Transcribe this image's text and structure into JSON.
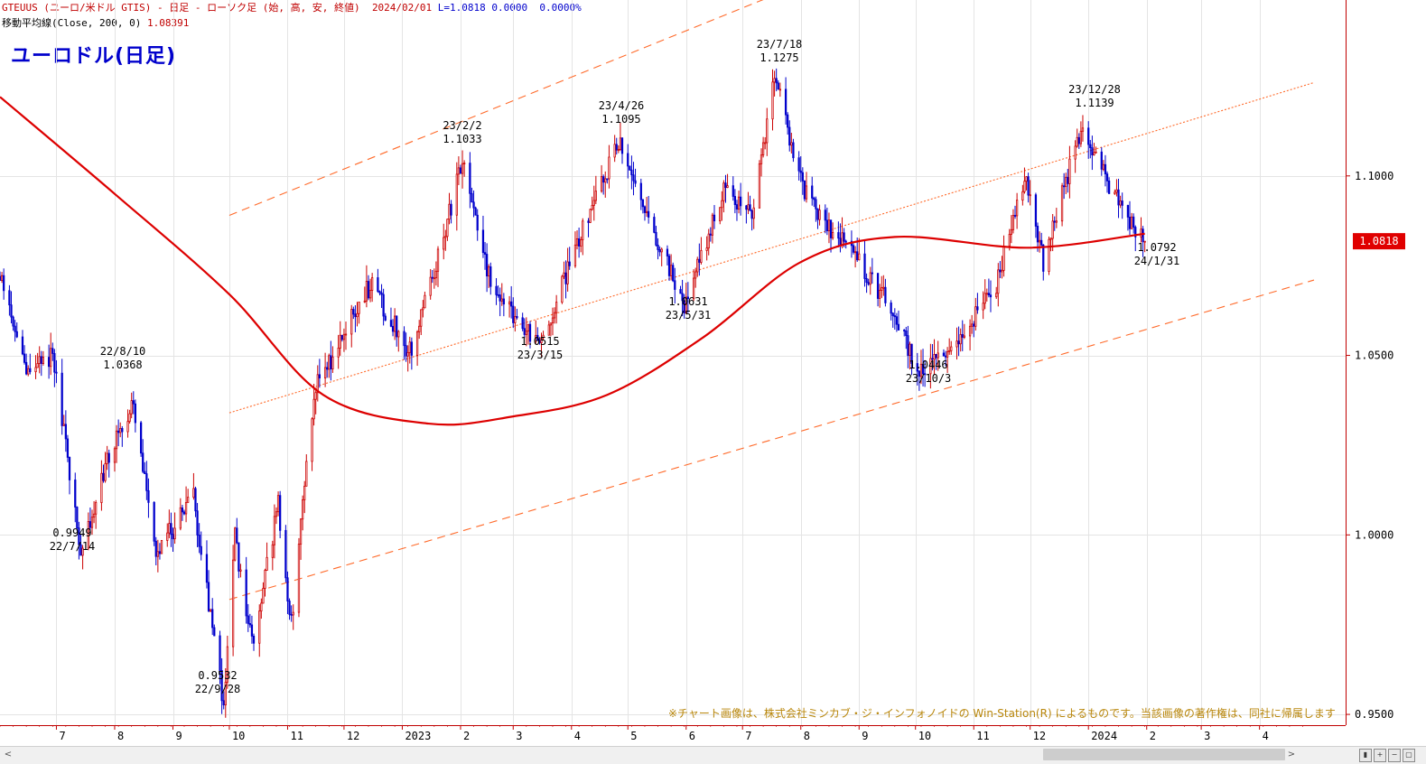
{
  "header": {
    "symbol_line": "GTEUUS (ユーロ/米ドル GTIS) - 日足 - ローソク足 (始, 高, 安, 終値)",
    "date": "2024/02/01",
    "last": "L=1.0818",
    "change": "0.0000",
    "change_pct": "0.0000%",
    "ma_label": "移動平均線(Close, 200, 0)",
    "ma_value": "1.08391"
  },
  "title": "ユーロドル(日足)",
  "copyright": "※チャート画像は、株式会社ミンカブ・ジ・インフォノイドの Win-Station(R) によるものです。当該画像の著作権は、同社に帰属します",
  "chart_data": {
    "type": "candlestick",
    "ylim": [
      0.947,
      1.149
    ],
    "y_ticks": [
      0.95,
      1.0,
      1.05,
      1.1
    ],
    "y_tick_labels": [
      "0.9500",
      "1.0000",
      "1.0500",
      "1.1000"
    ],
    "x_labels": [
      "7",
      "8",
      "9",
      "10",
      "11",
      "12",
      "2023",
      "2",
      "3",
      "4",
      "5",
      "6",
      "7",
      "8",
      "9",
      "10",
      "11",
      "12",
      "2024",
      "2",
      "3",
      "4"
    ],
    "last_price": "1.0818",
    "colors": {
      "up": "#cc0000",
      "down": "#0000cc",
      "ma": "#dd0000",
      "channel": "#ff6a2a",
      "badge": "#e00000"
    },
    "close_path": [
      {
        "date": "2022-06-01",
        "close": 1.072
      },
      {
        "date": "2022-06-15",
        "close": 1.045
      },
      {
        "date": "2022-06-29",
        "close": 1.05
      },
      {
        "date": "2022-07-14",
        "close": 0.9949
      },
      {
        "date": "2022-07-29",
        "close": 1.022
      },
      {
        "date": "2022-08-10",
        "close": 1.0368
      },
      {
        "date": "2022-08-23",
        "close": 0.995
      },
      {
        "date": "2022-09-12",
        "close": 1.01
      },
      {
        "date": "2022-09-28",
        "close": 0.9532
      },
      {
        "date": "2022-10-04",
        "close": 0.999
      },
      {
        "date": "2022-10-13",
        "close": 0.97
      },
      {
        "date": "2022-10-27",
        "close": 1.008
      },
      {
        "date": "2022-11-03",
        "close": 0.975
      },
      {
        "date": "2022-11-15",
        "close": 1.04
      },
      {
        "date": "2022-12-15",
        "close": 1.07
      },
      {
        "date": "2023-01-06",
        "close": 1.05
      },
      {
        "date": "2023-01-26",
        "close": 1.09
      },
      {
        "date": "2023-02-02",
        "close": 1.1033
      },
      {
        "date": "2023-02-17",
        "close": 1.07
      },
      {
        "date": "2023-03-15",
        "close": 1.0515
      },
      {
        "date": "2023-04-10",
        "close": 1.09
      },
      {
        "date": "2023-04-26",
        "close": 1.1095
      },
      {
        "date": "2023-05-31",
        "close": 1.0631
      },
      {
        "date": "2023-06-22",
        "close": 1.098
      },
      {
        "date": "2023-07-06",
        "close": 1.088
      },
      {
        "date": "2023-07-18",
        "close": 1.1275
      },
      {
        "date": "2023-08-03",
        "close": 1.095
      },
      {
        "date": "2023-08-25",
        "close": 1.08
      },
      {
        "date": "2023-09-15",
        "close": 1.066
      },
      {
        "date": "2023-10-03",
        "close": 1.0446
      },
      {
        "date": "2023-10-26",
        "close": 1.056
      },
      {
        "date": "2023-11-13",
        "close": 1.07
      },
      {
        "date": "2023-11-29",
        "close": 1.1
      },
      {
        "date": "2023-12-08",
        "close": 1.075
      },
      {
        "date": "2023-12-28",
        "close": 1.1139
      },
      {
        "date": "2024-01-12",
        "close": 1.097
      },
      {
        "date": "2024-01-31",
        "close": 1.0818
      }
    ],
    "ma200": [
      {
        "date": "2022-06-01",
        "value": 1.122
      },
      {
        "date": "2022-08-01",
        "value": 1.095
      },
      {
        "date": "2022-10-01",
        "value": 1.067
      },
      {
        "date": "2022-11-20",
        "value": 1.039
      },
      {
        "date": "2023-01-15",
        "value": 1.031
      },
      {
        "date": "2023-03-01",
        "value": 1.033
      },
      {
        "date": "2023-04-20",
        "value": 1.039
      },
      {
        "date": "2023-06-10",
        "value": 1.055
      },
      {
        "date": "2023-08-01",
        "value": 1.076
      },
      {
        "date": "2023-09-20",
        "value": 1.083
      },
      {
        "date": "2023-11-30",
        "value": 1.08
      },
      {
        "date": "2024-01-31",
        "value": 1.0839
      }
    ],
    "channel_lines": [
      {
        "style": "dashed",
        "from": {
          "date": "2022-10-01",
          "value": 1.089
        },
        "to": {
          "date": "2024-02-28",
          "value": 1.198
        }
      },
      {
        "style": "dotted",
        "from": {
          "date": "2022-10-01",
          "value": 1.034
        },
        "to": {
          "date": "2024-04-30",
          "value": 1.126
        }
      },
      {
        "style": "dashed",
        "from": {
          "date": "2022-10-01",
          "value": 0.982
        },
        "to": {
          "date": "2024-04-30",
          "value": 1.071
        }
      }
    ],
    "annotations": [
      {
        "value": "0.9949",
        "date": "22/7/14"
      },
      {
        "date": "22/8/10",
        "value": "1.0368"
      },
      {
        "value": "0.9532",
        "date": "22/9/28"
      },
      {
        "date": "23/2/2",
        "value": "1.1033"
      },
      {
        "value": "1.0515",
        "date": "23/3/15"
      },
      {
        "date": "23/4/26",
        "value": "1.1095"
      },
      {
        "value": "1.0631",
        "date": "23/5/31"
      },
      {
        "date": "23/7/18",
        "value": "1.1275"
      },
      {
        "value": "1.0446",
        "date": "23/10/3"
      },
      {
        "date": "23/12/28",
        "value": "1.1139"
      },
      {
        "value": "1.0792",
        "date": "24/1/31"
      }
    ]
  }
}
